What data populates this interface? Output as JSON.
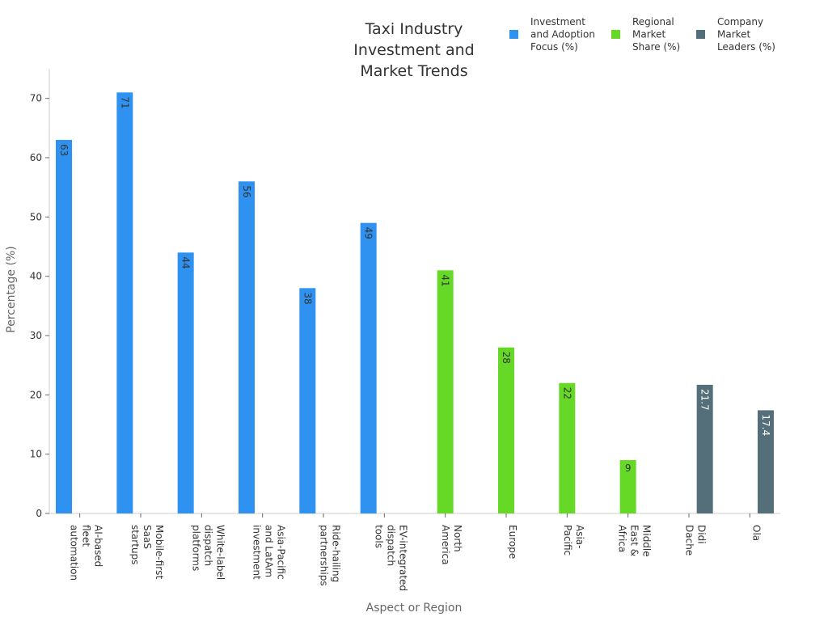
{
  "chart_data": {
    "type": "bar",
    "title": [
      "Taxi Industry",
      "Investment and",
      "Market Trends"
    ],
    "xlabel": "Aspect or Region",
    "ylabel": "Percentage (%)",
    "ylim": [
      0,
      75
    ],
    "yticks": [
      0,
      10,
      20,
      30,
      40,
      50,
      60,
      70
    ],
    "grid": false,
    "legend_position": "top-right",
    "categories": [
      [
        "AI-based",
        "fleet",
        "automation"
      ],
      [
        "Mobile-first",
        "SaaS",
        "startups"
      ],
      [
        "White-label",
        "dispatch",
        "platforms"
      ],
      [
        "Asia-Pacific",
        "and LatAm",
        "investment"
      ],
      [
        "Ride-hailing",
        "partnerships"
      ],
      [
        "EV-integrated",
        "dispatch",
        "tools"
      ],
      [
        "North",
        "America"
      ],
      [
        "Europe"
      ],
      [
        "Asia-",
        "Pacific"
      ],
      [
        "Middle",
        "East &",
        "Africa"
      ],
      [
        "Didi",
        "Dache"
      ],
      [
        "Ola"
      ]
    ],
    "series": [
      {
        "name": [
          "Investment",
          "and Adoption",
          "Focus (%)"
        ],
        "color": "#2f91f0",
        "label_color": "#333333",
        "values": [
          63,
          71,
          44,
          56,
          38,
          49,
          null,
          null,
          null,
          null,
          null,
          null
        ]
      },
      {
        "name": [
          "Regional",
          "Market",
          "Share (%)"
        ],
        "color": "#66d927",
        "label_color": "#333333",
        "values": [
          null,
          null,
          null,
          null,
          null,
          null,
          41,
          28,
          22,
          9,
          null,
          null
        ]
      },
      {
        "name": [
          "Company",
          "Market",
          "Leaders (%)"
        ],
        "color": "#546e7a",
        "label_color": "#ffffff",
        "values": [
          null,
          null,
          null,
          null,
          null,
          null,
          null,
          null,
          null,
          null,
          21.7,
          17.4
        ]
      }
    ]
  }
}
